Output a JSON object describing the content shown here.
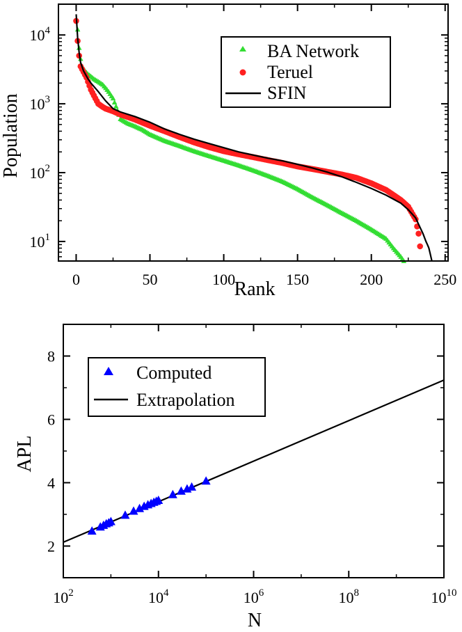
{
  "chart_data": [
    {
      "type": "scatter",
      "title": "",
      "xlabel": "Rank",
      "ylabel": "Population",
      "xscale": "linear",
      "yscale": "log",
      "xlim": [
        -12,
        252
      ],
      "ylim": [
        5.2,
        28000
      ],
      "xticks": [
        0,
        50,
        100,
        150,
        200,
        250
      ],
      "xtick_labels": [
        "0",
        "50",
        "100",
        "150",
        "200",
        "250"
      ],
      "yticks": [
        10,
        100,
        1000,
        10000
      ],
      "ytick_labels": [
        {
          "base": "10",
          "exp": "1"
        },
        {
          "base": "10",
          "exp": "2"
        },
        {
          "base": "10",
          "exp": "3"
        },
        {
          "base": "10",
          "exp": "4"
        }
      ],
      "legend_position": "top-right",
      "series": [
        {
          "name": "BA Network",
          "marker": "triangle",
          "color": "#33dd33",
          "x": [
            1,
            2,
            3,
            4,
            6,
            8,
            10,
            12,
            15,
            18,
            20,
            22,
            25,
            28,
            30,
            35,
            40,
            45,
            50,
            60,
            70,
            80,
            90,
            100,
            110,
            120,
            130,
            140,
            150,
            160,
            170,
            180,
            190,
            200,
            210,
            215,
            220,
            222
          ],
          "y": [
            12000,
            6500,
            4500,
            3500,
            3000,
            2700,
            2500,
            2300,
            2100,
            1900,
            1700,
            1500,
            1200,
            800,
            600,
            520,
            470,
            420,
            360,
            290,
            245,
            205,
            175,
            150,
            128,
            108,
            90,
            74,
            58,
            44,
            34,
            26,
            20,
            15,
            11,
            8,
            6,
            5.2
          ]
        },
        {
          "name": "Teruel",
          "marker": "circle",
          "color": "#ff2020",
          "x": [
            0,
            1,
            2,
            3,
            5,
            7,
            10,
            13,
            15,
            18,
            20,
            25,
            30,
            40,
            50,
            60,
            70,
            80,
            90,
            100,
            110,
            120,
            130,
            140,
            150,
            160,
            170,
            180,
            190,
            200,
            210,
            220,
            225,
            230,
            232,
            233
          ],
          "y": [
            16000,
            8200,
            5000,
            3500,
            2900,
            2400,
            1600,
            1200,
            1000,
            900,
            850,
            780,
            700,
            590,
            480,
            400,
            330,
            275,
            235,
            205,
            185,
            168,
            152,
            138,
            123,
            113,
            103,
            94,
            84,
            70,
            56,
            40,
            32,
            21,
            13,
            8.5
          ]
        },
        {
          "name": "SFIN",
          "marker": "line",
          "color": "#000000",
          "x": [
            0,
            1,
            2,
            3,
            5,
            8,
            10,
            15,
            20,
            25,
            30,
            40,
            50,
            60,
            70,
            80,
            90,
            100,
            110,
            120,
            130,
            140,
            150,
            160,
            170,
            180,
            190,
            200,
            210,
            220,
            225,
            230,
            233,
            235,
            237,
            238,
            239,
            240,
            241
          ],
          "y": [
            20000,
            9000,
            5600,
            4000,
            3000,
            2300,
            2000,
            1500,
            1100,
            850,
            760,
            650,
            540,
            430,
            360,
            305,
            265,
            230,
            200,
            180,
            162,
            148,
            132,
            117,
            102,
            87,
            72,
            59,
            47,
            36,
            29,
            22,
            16,
            13,
            10,
            9,
            8,
            6.5,
            5.2
          ]
        }
      ]
    },
    {
      "type": "scatter",
      "title": "",
      "xlabel": "N",
      "ylabel": "APL",
      "xscale": "log",
      "yscale": "linear",
      "xlim": [
        100,
        10000000000
      ],
      "ylim": [
        1.0,
        9.0
      ],
      "xticks": [
        100,
        10000,
        1000000,
        100000000,
        10000000000
      ],
      "xtick_labels": [
        {
          "base": "10",
          "exp": "2"
        },
        {
          "base": "10",
          "exp": "4"
        },
        {
          "base": "10",
          "exp": "6"
        },
        {
          "base": "10",
          "exp": "8"
        },
        {
          "base": "10",
          "exp": "10"
        }
      ],
      "yticks": [
        2,
        4,
        6,
        8
      ],
      "ytick_labels": [
        "2",
        "4",
        "6",
        "8"
      ],
      "legend_position": "top-left",
      "series": [
        {
          "name": "Computed",
          "marker": "triangle",
          "color": "#0000ff",
          "x": [
            400,
            600,
            700,
            800,
            900,
            1000,
            2000,
            3000,
            4000,
            5000,
            6000,
            7000,
            8000,
            9000,
            10000,
            20000,
            30000,
            40000,
            50000,
            100000
          ],
          "y": [
            2.47,
            2.6,
            2.65,
            2.7,
            2.73,
            2.77,
            2.97,
            3.1,
            3.18,
            3.25,
            3.3,
            3.34,
            3.38,
            3.41,
            3.44,
            3.62,
            3.73,
            3.8,
            3.86,
            4.05
          ]
        },
        {
          "name": "Extrapolation",
          "marker": "line",
          "color": "#000000",
          "x": [
            100,
            10000000000
          ],
          "y": [
            2.12,
            7.24
          ]
        }
      ]
    }
  ]
}
